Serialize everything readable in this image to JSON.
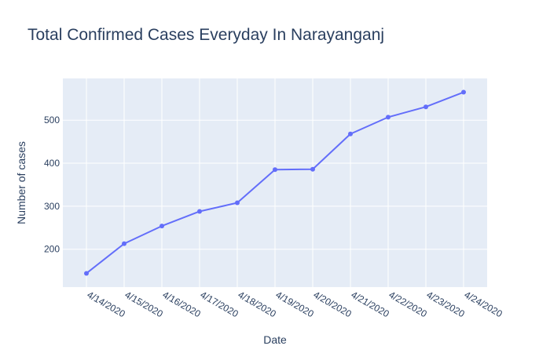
{
  "chart_data": {
    "type": "line",
    "title": "Total Confirmed Cases Everyday In Narayanganj",
    "xlabel": "Date",
    "ylabel": "Number of cases",
    "categories": [
      "4/14/2020",
      "4/15/2020",
      "4/16/2020",
      "4/17/2020",
      "4/18/2020",
      "4/19/2020",
      "4/20/2020",
      "4/21/2020",
      "4/22/2020",
      "4/23/2020",
      "4/24/2020"
    ],
    "series": [
      {
        "values": [
          144,
          213,
          254,
          288,
          308,
          385,
          386,
          468,
          507,
          531,
          565
        ]
      }
    ],
    "ylim": [
      112,
      597
    ],
    "yticks": [
      200,
      300,
      400,
      500
    ],
    "grid": true,
    "colors": {
      "line": "#636efa",
      "plot_bg": "#e5ecf6",
      "grid": "#ffffff",
      "text": "#2a3f5f"
    }
  }
}
